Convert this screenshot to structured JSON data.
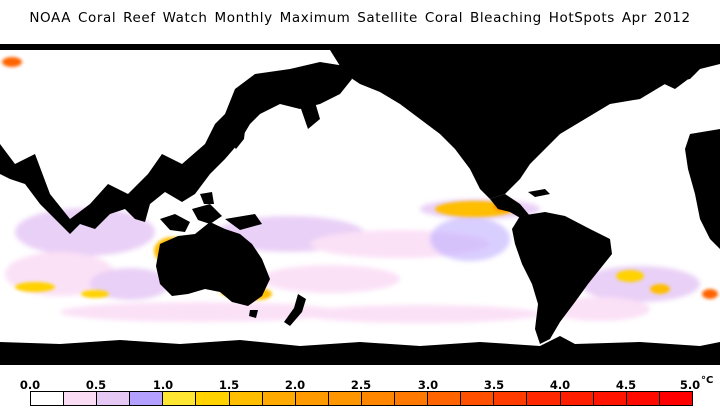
{
  "title": "NOAA Coral Reef Watch Monthly Maximum Satellite Coral Bleaching HotSpots    Apr 2012",
  "colors": {
    "land": "#000000",
    "ocean_zero": "#ffffff"
  },
  "legend": {
    "ticks": [
      "0.0",
      "0.5",
      "1.0",
      "1.5",
      "2.0",
      "2.5",
      "3.0",
      "3.5",
      "4.0",
      "4.5",
      "5.0"
    ],
    "unit": "°C",
    "bin_colors": [
      "#ffffff",
      "#fadcf5",
      "#e6c8f5",
      "#b4a0ff",
      "#ffe632",
      "#ffd200",
      "#ffbe00",
      "#ffaa00",
      "#ff9b00",
      "#ff9600",
      "#ff8700",
      "#ff7800",
      "#ff6400",
      "#ff5000",
      "#ff3c00",
      "#ff2800",
      "#ff1e00",
      "#ff1400",
      "#ff0a00",
      "#ff0000"
    ]
  }
}
